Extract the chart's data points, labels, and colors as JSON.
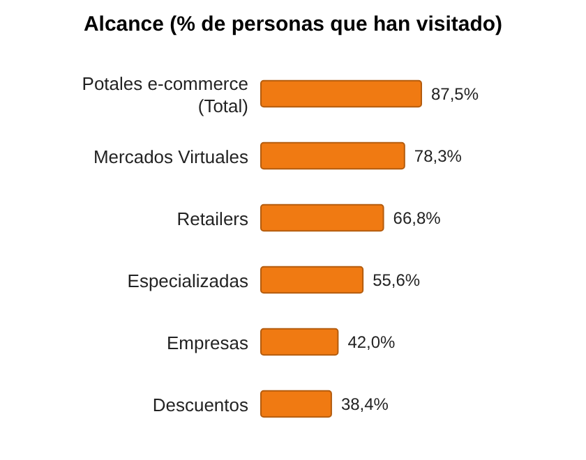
{
  "chart_data": {
    "type": "bar",
    "orientation": "horizontal",
    "title": "Alcance (% de personas que han visitado)",
    "categories": [
      "Potales e-commerce (Total)",
      "Mercados Virtuales",
      "Retailers",
      "Especializadas",
      "Empresas",
      "Descuentos"
    ],
    "values": [
      87.5,
      78.3,
      66.8,
      55.6,
      42.0,
      38.4
    ],
    "value_labels": [
      "87,5%",
      "78,3%",
      "66,8%",
      "55,6%",
      "42,0%",
      "38,4%"
    ],
    "color": "#f07a12"
  }
}
